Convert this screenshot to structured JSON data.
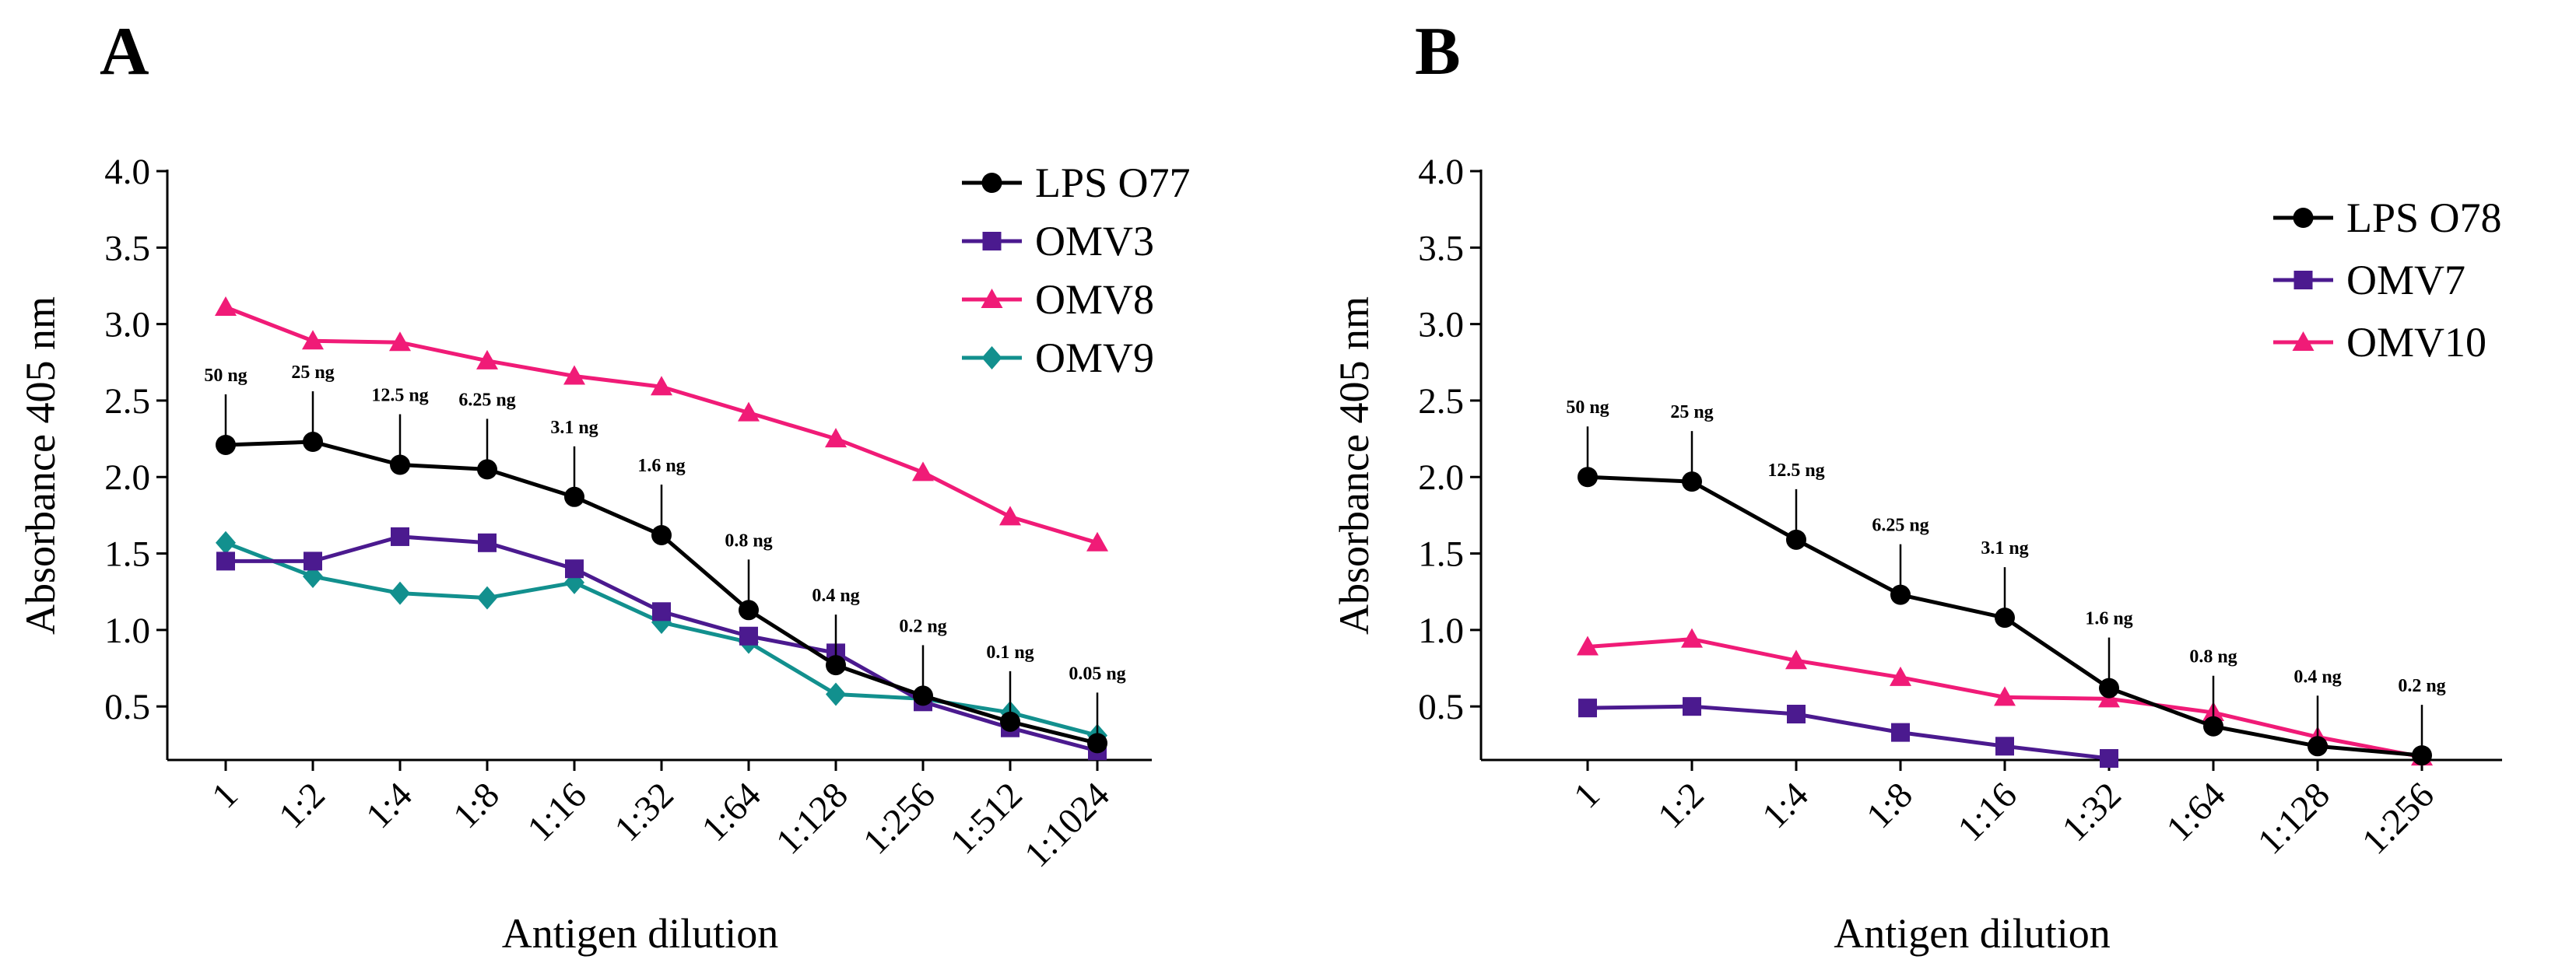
{
  "chart_data": [
    {
      "type": "line",
      "panel_label": "A",
      "xlabel": "Antigen dilution",
      "ylabel": "Absorbance 405 nm",
      "ylim": [
        0.15,
        4.0
      ],
      "yticks": [
        0.5,
        1.0,
        1.5,
        2.0,
        2.5,
        3.0,
        3.5,
        4.0
      ],
      "ytick_labels": [
        "0.5",
        "1.0",
        "1.5",
        "2.0",
        "2.5",
        "3.0",
        "3.5",
        "4.0"
      ],
      "categories": [
        "1",
        "1:2",
        "1:4",
        "1:8",
        "1:16",
        "1:32",
        "1:64",
        "1:128",
        "1:256",
        "1:512",
        "1:1024"
      ],
      "legend_position": "top-right",
      "series": [
        {
          "name": "LPS O77",
          "marker": "circle",
          "color": "#000000",
          "values": [
            2.21,
            2.23,
            2.08,
            2.05,
            1.87,
            1.62,
            1.13,
            0.77,
            0.57,
            0.4,
            0.26
          ]
        },
        {
          "name": "OMV3",
          "marker": "square",
          "color": "#4b1a8f",
          "values": [
            1.45,
            1.45,
            1.61,
            1.57,
            1.4,
            1.12,
            0.96,
            0.85,
            0.53,
            0.36,
            0.21
          ]
        },
        {
          "name": "OMV8",
          "marker": "triangle",
          "color": "#f01b77",
          "values": [
            3.11,
            2.89,
            2.88,
            2.76,
            2.66,
            2.59,
            2.42,
            2.25,
            2.03,
            1.74,
            1.57
          ]
        },
        {
          "name": "OMV9",
          "marker": "diamond",
          "color": "#12908e",
          "values": [
            1.57,
            1.35,
            1.24,
            1.21,
            1.31,
            1.05,
            0.92,
            0.58,
            0.55,
            0.46,
            0.31
          ]
        }
      ],
      "annotations": [
        {
          "series": "LPS O77",
          "index": 0,
          "text": "50 ng"
        },
        {
          "series": "LPS O77",
          "index": 1,
          "text": "25 ng"
        },
        {
          "series": "LPS O77",
          "index": 2,
          "text": "12.5 ng"
        },
        {
          "series": "LPS O77",
          "index": 3,
          "text": "6.25 ng"
        },
        {
          "series": "LPS O77",
          "index": 4,
          "text": "3.1 ng"
        },
        {
          "series": "LPS O77",
          "index": 5,
          "text": "1.6 ng"
        },
        {
          "series": "LPS O77",
          "index": 6,
          "text": "0.8 ng"
        },
        {
          "series": "LPS O77",
          "index": 7,
          "text": "0.4 ng"
        },
        {
          "series": "LPS O77",
          "index": 8,
          "text": "0.2 ng"
        },
        {
          "series": "LPS O77",
          "index": 9,
          "text": "0.1 ng"
        },
        {
          "series": "LPS O77",
          "index": 10,
          "text": "0.05 ng"
        }
      ]
    },
    {
      "type": "line",
      "panel_label": "B",
      "xlabel": "Antigen dilution",
      "ylabel": "Absorbance 405 nm",
      "ylim": [
        0.15,
        4.0
      ],
      "yticks": [
        0.5,
        1.0,
        1.5,
        2.0,
        2.5,
        3.0,
        3.5,
        4.0
      ],
      "ytick_labels": [
        "0.5",
        "1.0",
        "1.5",
        "2.0",
        "2.5",
        "3.0",
        "3.5",
        "4.0"
      ],
      "categories": [
        "1",
        "1:2",
        "1:4",
        "1:8",
        "1:16",
        "1:32",
        "1:64",
        "1:128",
        "1:256"
      ],
      "legend_position": "top-right",
      "series": [
        {
          "name": "LPS O78",
          "marker": "circle",
          "color": "#000000",
          "values": [
            2.0,
            1.97,
            1.59,
            1.23,
            1.08,
            0.62,
            0.37,
            0.24,
            0.18
          ]
        },
        {
          "name": "OMV7",
          "marker": "square",
          "color": "#4b1a8f",
          "values": [
            0.49,
            0.5,
            0.45,
            0.33,
            0.24,
            0.16,
            null,
            null,
            null
          ]
        },
        {
          "name": "OMV10",
          "marker": "triangle",
          "color": "#f01b77",
          "values": [
            0.89,
            0.94,
            0.8,
            0.69,
            0.56,
            0.55,
            0.46,
            0.3,
            0.17
          ]
        }
      ],
      "annotations": [
        {
          "series": "LPS O78",
          "index": 0,
          "text": "50 ng"
        },
        {
          "series": "LPS O78",
          "index": 1,
          "text": "25 ng"
        },
        {
          "series": "LPS O78",
          "index": 2,
          "text": "12.5 ng"
        },
        {
          "series": "LPS O78",
          "index": 3,
          "text": "6.25 ng"
        },
        {
          "series": "LPS O78",
          "index": 4,
          "text": "3.1 ng"
        },
        {
          "series": "LPS O78",
          "index": 5,
          "text": "1.6 ng"
        },
        {
          "series": "LPS O78",
          "index": 6,
          "text": "0.8 ng"
        },
        {
          "series": "LPS O78",
          "index": 7,
          "text": "0.4 ng"
        },
        {
          "series": "LPS O78",
          "index": 8,
          "text": "0.2 ng"
        }
      ]
    }
  ]
}
